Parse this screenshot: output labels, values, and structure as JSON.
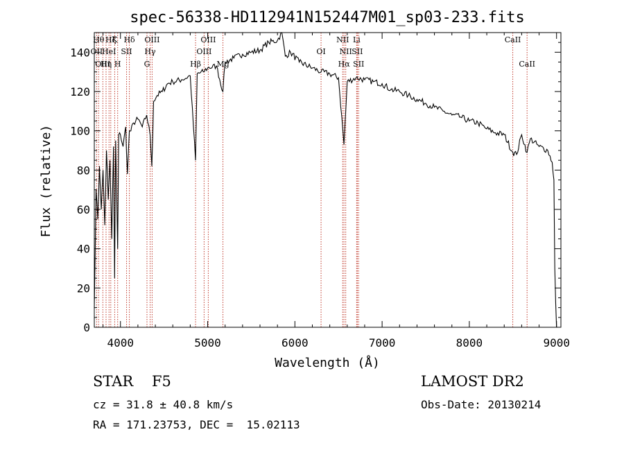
{
  "chart_data": {
    "type": "line",
    "title": "spec-56338-HD112941N152447M01_sp03-233.fits",
    "xlabel": "Wavelength (Å)",
    "ylabel": "Flux (relative)",
    "xlim": [
      3700,
      9050
    ],
    "ylim": [
      0,
      150
    ],
    "xticks": [
      4000,
      5000,
      6000,
      7000,
      8000,
      9000
    ],
    "yticks": [
      0,
      20,
      40,
      60,
      80,
      100,
      120,
      140
    ],
    "series": [
      {
        "x": [
          3700,
          3720,
          3740,
          3760,
          3780,
          3800,
          3820,
          3840,
          3860,
          3880,
          3900,
          3920,
          3933,
          3945,
          3968,
          3980,
          4000,
          4030,
          4060,
          4080,
          4102,
          4120,
          4150,
          4200,
          4250,
          4300,
          4340,
          4360,
          4380,
          4420,
          4480,
          4540,
          4600,
          4700,
          4800,
          4861,
          4880,
          4950,
          5000,
          5100,
          5175,
          5200,
          5300,
          5400,
          5500,
          5600,
          5700,
          5800,
          5850,
          5890,
          5950,
          6050,
          6200,
          6300,
          6400,
          6500,
          6563,
          6600,
          6700,
          6800,
          6900,
          7000,
          7100,
          7200,
          7300,
          7400,
          7500,
          7600,
          7700,
          7800,
          7900,
          8000,
          8100,
          8200,
          8300,
          8400,
          8498,
          8542,
          8600,
          8662,
          8700,
          8800,
          8900,
          8950,
          8970,
          8980,
          8990,
          9000
        ],
        "y": [
          10,
          70,
          55,
          82,
          60,
          80,
          52,
          90,
          65,
          85,
          45,
          92,
          25,
          95,
          40,
          98,
          98,
          92,
          102,
          78,
          100,
          100,
          104,
          106,
          102,
          108,
          98,
          82,
          115,
          118,
          120,
          124,
          125,
          126,
          128,
          85,
          129,
          130,
          132,
          133,
          120,
          135,
          137,
          139,
          140,
          141,
          145,
          146,
          150,
          138,
          140,
          135,
          132,
          130,
          129,
          127,
          93,
          125,
          127,
          126,
          125,
          124,
          121,
          120,
          118,
          116,
          114,
          112,
          110,
          108,
          107,
          105,
          104,
          101,
          99,
          98,
          89,
          88,
          98,
          89,
          96,
          92,
          90,
          84,
          75,
          30,
          12,
          0
        ]
      }
    ],
    "lines": [
      {
        "x": 3750,
        "label": "Hθ",
        "row": 1
      },
      {
        "x": 3727,
        "label": "OII",
        "row": 2
      },
      {
        "x": 3798,
        "label": "OIII",
        "row": 3
      },
      {
        "x": 3835,
        "label": "Hη",
        "row": 3
      },
      {
        "x": 3869,
        "label": "HeI",
        "row": 2
      },
      {
        "x": 3889,
        "label": "Hζ",
        "row": 1
      },
      {
        "x": 3934,
        "label": "K",
        "row": 1
      },
      {
        "x": 3968,
        "label": "H",
        "row": 3
      },
      {
        "x": 4070,
        "label": "SII",
        "row": 2
      },
      {
        "x": 4102,
        "label": "Hδ",
        "row": 1
      },
      {
        "x": 4304,
        "label": "G",
        "row": 3
      },
      {
        "x": 4340,
        "label": "Hγ",
        "row": 2
      },
      {
        "x": 4363,
        "label": "OIII",
        "row": 1
      },
      {
        "x": 4861,
        "label": "Hβ",
        "row": 3
      },
      {
        "x": 4959,
        "label": "OIII",
        "row": 2
      },
      {
        "x": 5007,
        "label": "OIII",
        "row": 1
      },
      {
        "x": 5175,
        "label": "Mg",
        "row": 3
      },
      {
        "x": 6300,
        "label": "OI",
        "row": 2
      },
      {
        "x": 6548,
        "label": "NII",
        "row": 1
      },
      {
        "x": 6563,
        "label": "Hα",
        "row": 3
      },
      {
        "x": 6583,
        "label": "NII",
        "row": 2
      },
      {
        "x": 6708,
        "label": "Li",
        "row": 1
      },
      {
        "x": 6716,
        "label": "SII",
        "row": 2
      },
      {
        "x": 6731,
        "label": "SII",
        "row": 3
      },
      {
        "x": 8498,
        "label": "CaII",
        "row": 1
      },
      {
        "x": 8662,
        "label": "CaII",
        "row": 3
      }
    ]
  },
  "info": {
    "class": "STAR",
    "subclass": "F5",
    "cz": "cz = 31.8 ± 40.8 km/s",
    "coords": "RA = 171.23753, DEC =  15.02113",
    "survey": "LAMOST DR2",
    "obs_date": "Obs-Date: 20130214"
  },
  "colors": {
    "axis": "#000000",
    "spectrum": "#000000",
    "line_marker": "#c0392b"
  }
}
